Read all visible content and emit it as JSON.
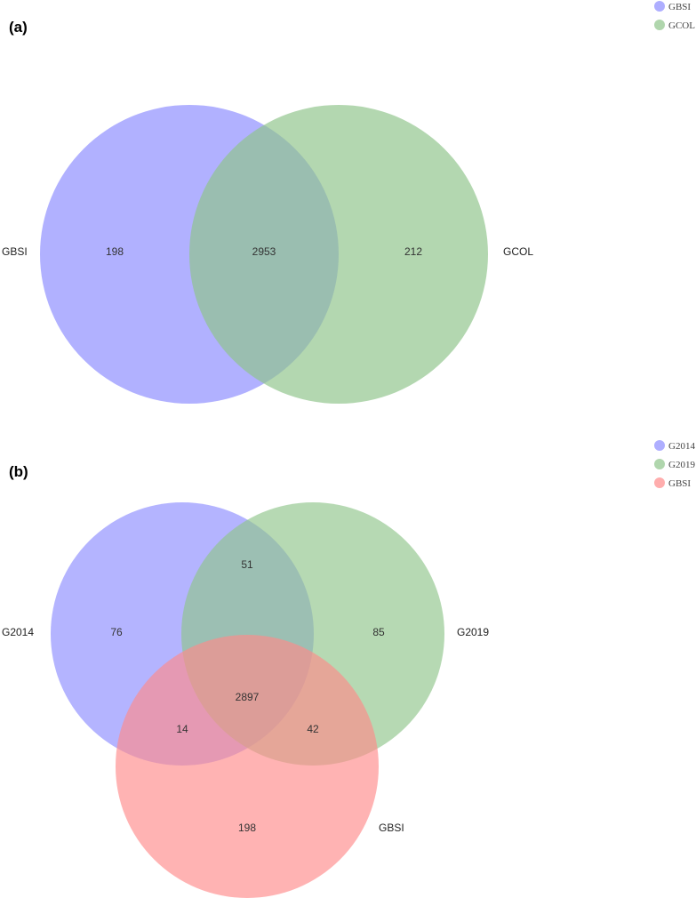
{
  "colors": {
    "blue": "#8c8cff",
    "green": "#8fc48a",
    "red": "#ff8a8a"
  },
  "chart_data": [
    {
      "type": "venn",
      "panel_label": "(a)",
      "sets": [
        {
          "name": "GBSI",
          "color": "#8c8cff"
        },
        {
          "name": "GCOL",
          "color": "#8fc48a"
        }
      ],
      "legend": [
        "GBSI",
        "GCOL"
      ],
      "regions": [
        {
          "sets": [
            "GBSI"
          ],
          "value": 198
        },
        {
          "sets": [
            "GBSI",
            "GCOL"
          ],
          "value": 2953
        },
        {
          "sets": [
            "GCOL"
          ],
          "value": 212
        }
      ]
    },
    {
      "type": "venn",
      "panel_label": "(b)",
      "sets": [
        {
          "name": "G2014",
          "color": "#8c8cff"
        },
        {
          "name": "G2019",
          "color": "#8fc48a"
        },
        {
          "name": "GBSI",
          "color": "#ff8a8a"
        }
      ],
      "legend": [
        "G2014",
        "G2019",
        "GBSI"
      ],
      "regions": [
        {
          "sets": [
            "G2014"
          ],
          "value": 76
        },
        {
          "sets": [
            "G2019"
          ],
          "value": 85
        },
        {
          "sets": [
            "GBSI"
          ],
          "value": 198
        },
        {
          "sets": [
            "G2014",
            "G2019"
          ],
          "value": 51
        },
        {
          "sets": [
            "G2014",
            "GBSI"
          ],
          "value": 14
        },
        {
          "sets": [
            "G2019",
            "GBSI"
          ],
          "value": 42
        },
        {
          "sets": [
            "G2014",
            "G2019",
            "GBSI"
          ],
          "value": 2897
        }
      ]
    }
  ]
}
